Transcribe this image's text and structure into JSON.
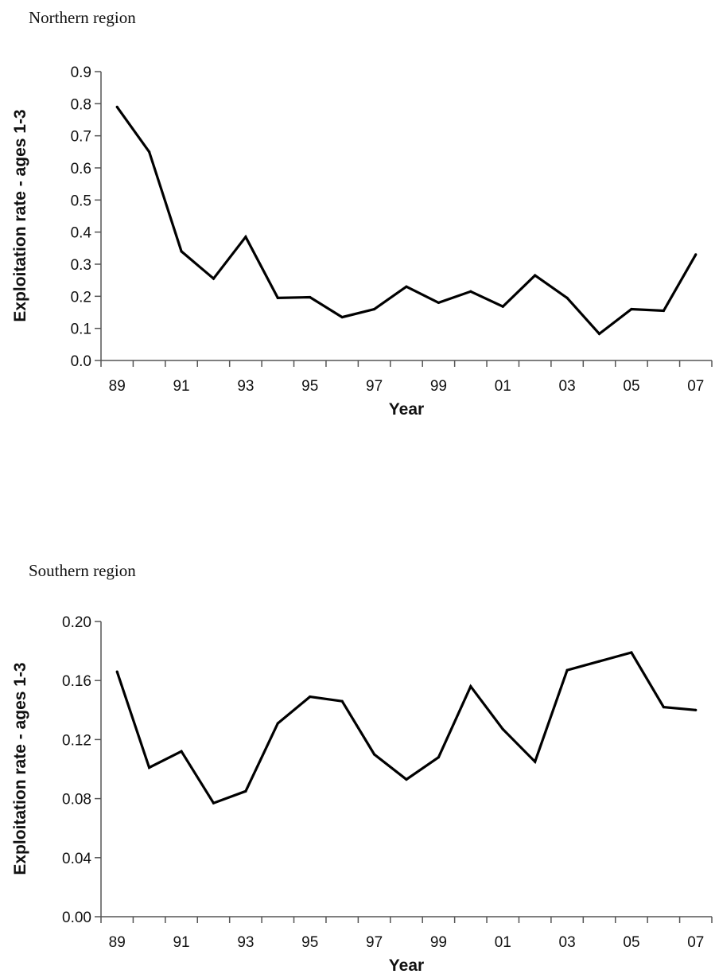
{
  "chart_data": [
    {
      "type": "line",
      "title": "Northern region",
      "xlabel": "Year",
      "ylabel": "Exploitation rate - ages 1-3",
      "x": [
        "89",
        "90",
        "91",
        "92",
        "93",
        "94",
        "95",
        "96",
        "97",
        "98",
        "99",
        "00",
        "01",
        "02",
        "03",
        "04",
        "05",
        "06",
        "07"
      ],
      "x_tick_labels": [
        "89",
        "91",
        "93",
        "95",
        "97",
        "99",
        "01",
        "03",
        "05",
        "07"
      ],
      "y_tick_labels": [
        "0.0",
        "0.1",
        "0.2",
        "0.3",
        "0.4",
        "0.5",
        "0.6",
        "0.7",
        "0.8",
        "0.9"
      ],
      "ylim": [
        0,
        0.9
      ],
      "grid": false,
      "legend": "none",
      "line_color": "#000000",
      "series": [
        {
          "values": [
            0.79,
            0.65,
            0.34,
            0.255,
            0.385,
            0.195,
            0.197,
            0.135,
            0.16,
            0.23,
            0.18,
            0.215,
            0.168,
            0.265,
            0.195,
            0.083,
            0.16,
            0.155,
            0.33
          ]
        }
      ]
    },
    {
      "type": "line",
      "title": "Southern region",
      "xlabel": "Year",
      "ylabel": "Exploitation rate - ages 1-3",
      "x": [
        "89",
        "90",
        "91",
        "92",
        "93",
        "94",
        "95",
        "96",
        "97",
        "98",
        "99",
        "00",
        "01",
        "02",
        "03",
        "04",
        "05",
        "06",
        "07"
      ],
      "x_tick_labels": [
        "89",
        "91",
        "93",
        "95",
        "97",
        "99",
        "01",
        "03",
        "05",
        "07"
      ],
      "y_tick_labels": [
        "0.00",
        "0.04",
        "0.08",
        "0.12",
        "0.16",
        "0.20"
      ],
      "ylim": [
        0,
        0.2
      ],
      "grid": false,
      "legend": "none",
      "line_color": "#000000",
      "series": [
        {
          "values": [
            0.166,
            0.101,
            0.112,
            0.077,
            0.085,
            0.131,
            0.149,
            0.146,
            0.11,
            0.093,
            0.108,
            0.156,
            0.127,
            0.105,
            0.167,
            0.173,
            0.179,
            0.142,
            0.14
          ]
        }
      ]
    }
  ]
}
